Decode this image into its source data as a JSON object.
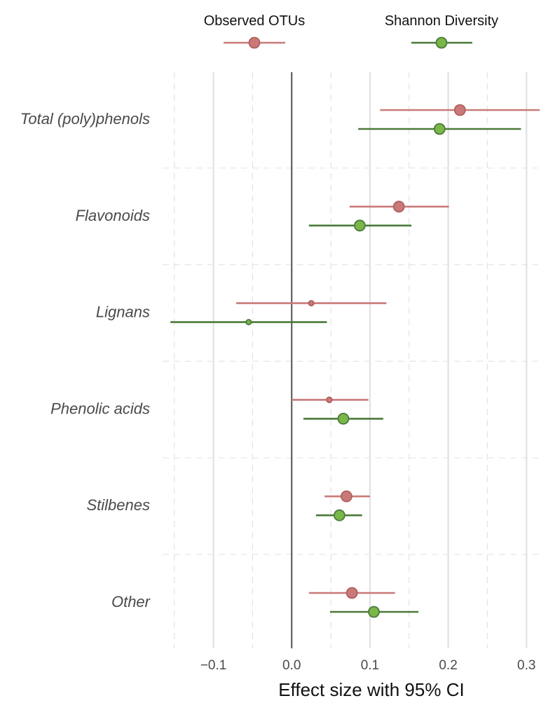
{
  "chart_data": {
    "type": "scatter",
    "subtype": "forest-plot",
    "xlabel": "Effect size with 95% CI",
    "ylabel": "",
    "xlim": [
      -0.165,
      0.315
    ],
    "x_ticks": [
      -0.1,
      0.0,
      0.1,
      0.2,
      0.3
    ],
    "x_tick_labels": [
      "−0.1",
      "0.0",
      "0.1",
      "0.2",
      "0.3"
    ],
    "reference_line": 0.0,
    "grid": true,
    "legend_position": "top",
    "categories": [
      "Total (poly)phenols",
      "Flavonoids",
      "Lignans",
      "Phenolic acids",
      "Stilbenes",
      "Other"
    ],
    "series": [
      {
        "name": "Observed OTUs",
        "color": "#c97a78",
        "points": [
          {
            "category": "Total (poly)phenols",
            "estimate": 0.215,
            "ci_low": 0.113,
            "ci_high": 0.317
          },
          {
            "category": "Flavonoids",
            "estimate": 0.137,
            "ci_low": 0.074,
            "ci_high": 0.201
          },
          {
            "category": "Lignans",
            "estimate": 0.025,
            "ci_low": -0.071,
            "ci_high": 0.121
          },
          {
            "category": "Phenolic acids",
            "estimate": 0.048,
            "ci_low": 0.0,
            "ci_high": 0.098
          },
          {
            "category": "Stilbenes",
            "estimate": 0.07,
            "ci_low": 0.042,
            "ci_high": 0.1
          },
          {
            "category": "Other",
            "estimate": 0.077,
            "ci_low": 0.022,
            "ci_high": 0.132
          }
        ]
      },
      {
        "name": "Shannon Diversity",
        "color": "#4a7a3a",
        "fill": "#7ab648",
        "points": [
          {
            "category": "Total (poly)phenols",
            "estimate": 0.189,
            "ci_low": 0.085,
            "ci_high": 0.293
          },
          {
            "category": "Flavonoids",
            "estimate": 0.087,
            "ci_low": 0.022,
            "ci_high": 0.153
          },
          {
            "category": "Lignans",
            "estimate": -0.055,
            "ci_low": -0.155,
            "ci_high": 0.045
          },
          {
            "category": "Phenolic acids",
            "estimate": 0.066,
            "ci_low": 0.015,
            "ci_high": 0.117
          },
          {
            "category": "Stilbenes",
            "estimate": 0.061,
            "ci_low": 0.031,
            "ci_high": 0.09
          },
          {
            "category": "Other",
            "estimate": 0.105,
            "ci_low": 0.049,
            "ci_high": 0.162
          }
        ]
      }
    ]
  }
}
